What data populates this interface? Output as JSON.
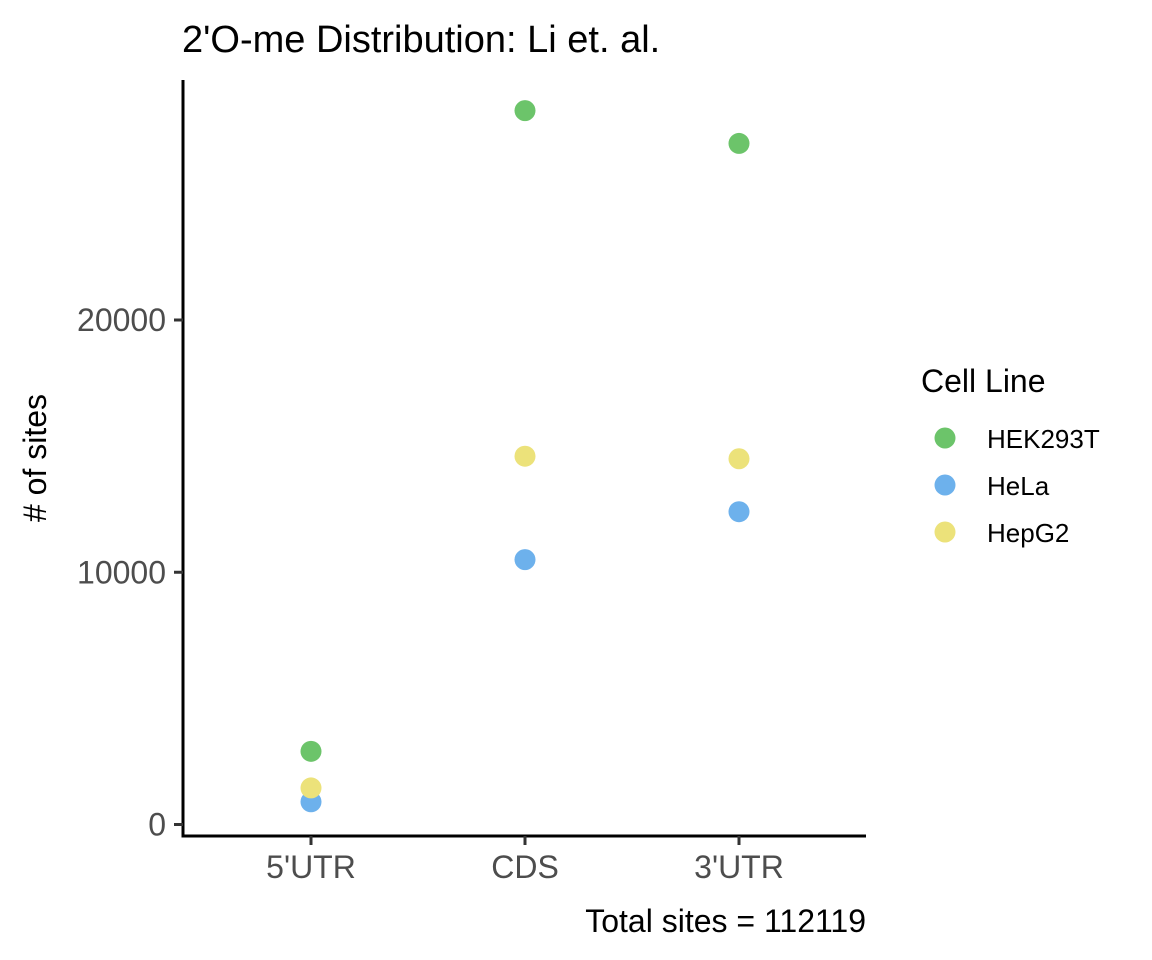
{
  "chart_data": {
    "type": "scatter",
    "title": "2'O-me Distribution: Li et. al.",
    "xlabel": "",
    "ylabel": "# of sites",
    "caption": "Total sites = 112119",
    "categories": [
      "5'UTR",
      "CDS",
      "3'UTR"
    ],
    "y_ticks": [
      0,
      10000,
      20000
    ],
    "ylim": [
      -400,
      29000
    ],
    "grid": false,
    "legend": {
      "title": "Cell Line",
      "position": "right"
    },
    "series": [
      {
        "name": "HEK293T",
        "color": "#6cc46a",
        "values": [
          2900,
          28300,
          27000
        ]
      },
      {
        "name": "HeLa",
        "color": "#6db1ec",
        "values": [
          900,
          10500,
          12400
        ]
      },
      {
        "name": "HepG2",
        "color": "#ece27a",
        "values": [
          1450,
          14600,
          14500
        ]
      }
    ]
  }
}
